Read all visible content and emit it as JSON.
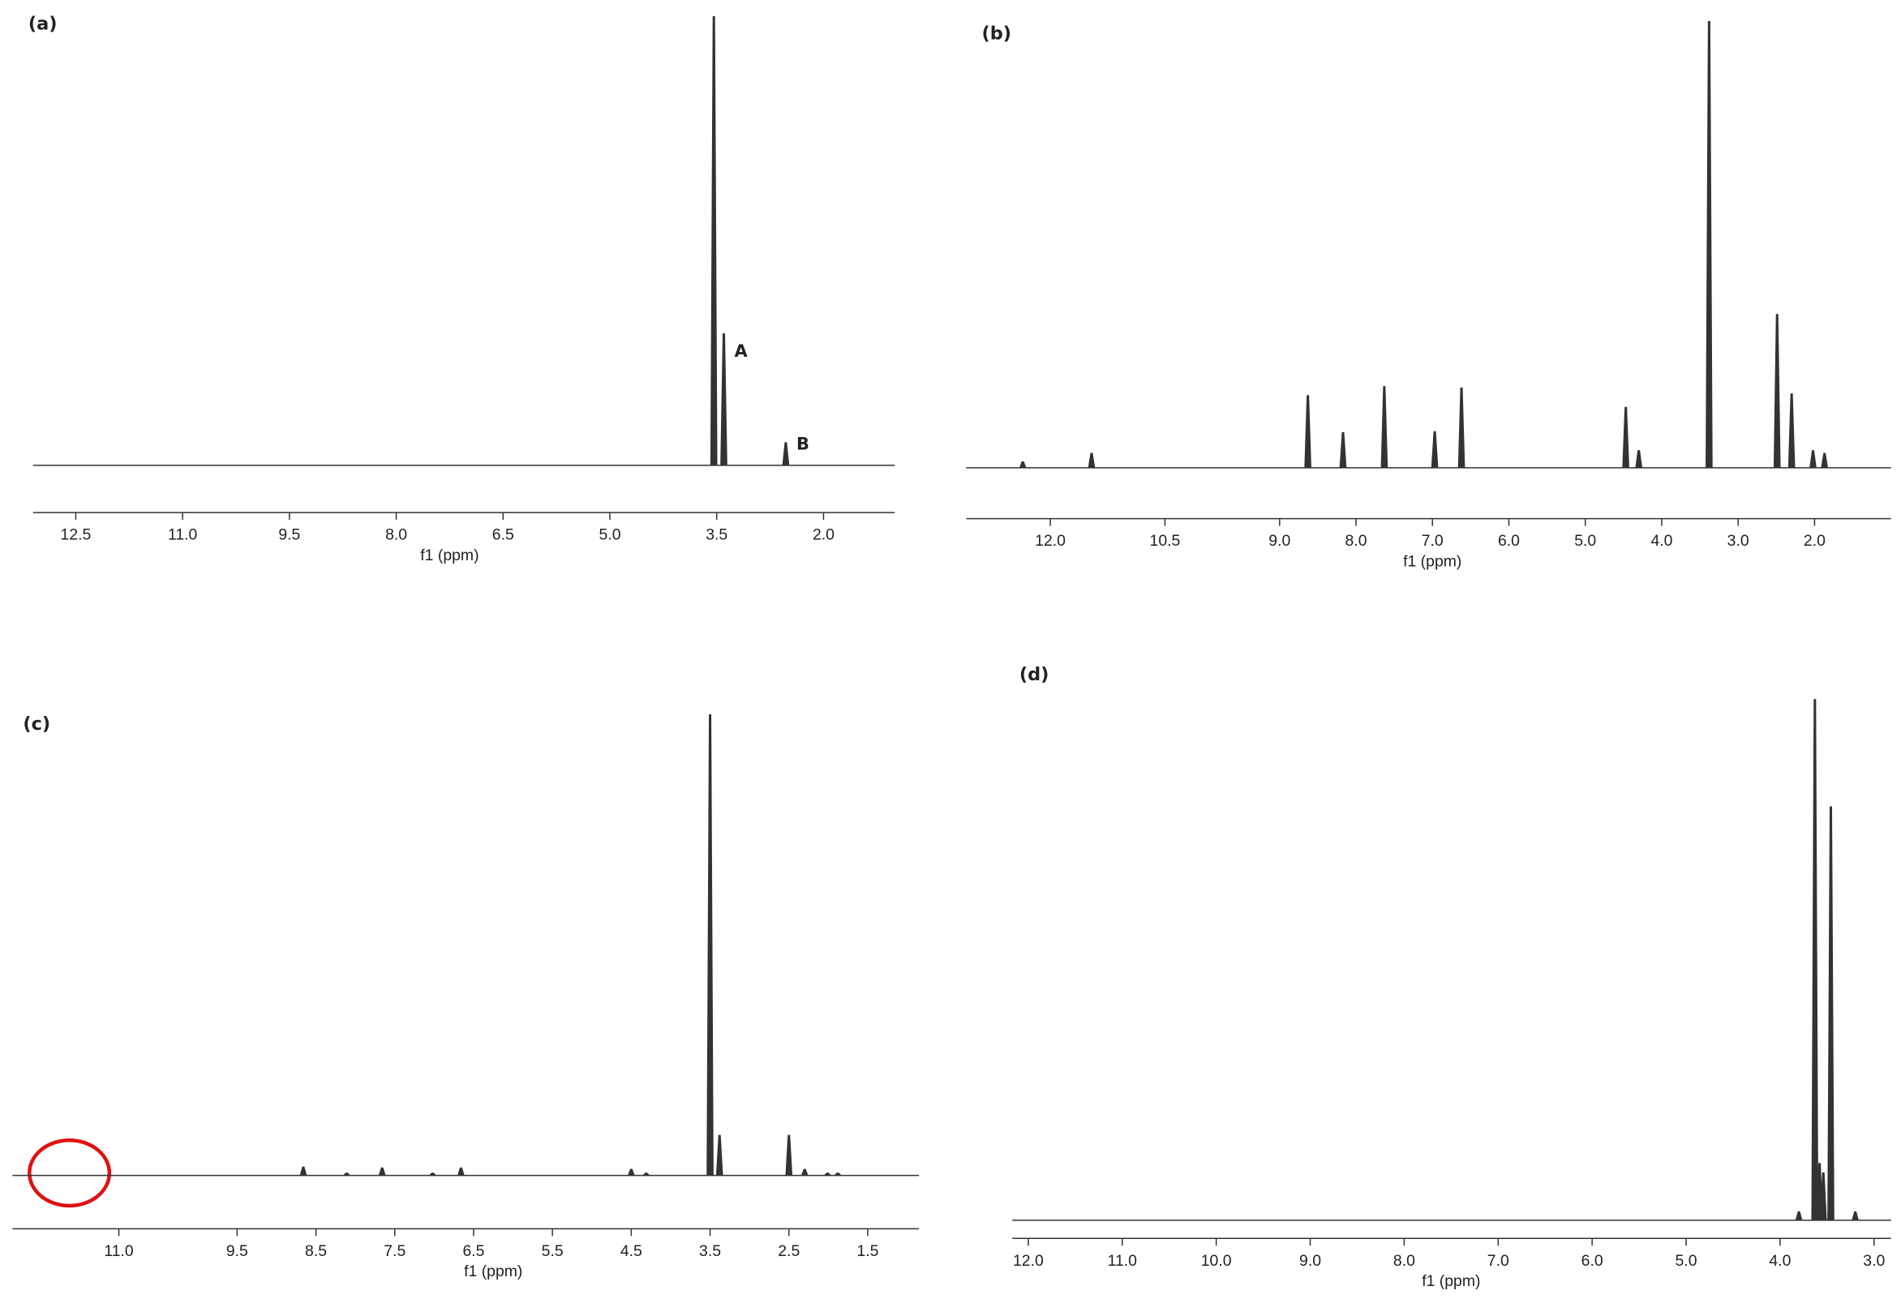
{
  "chart_data": [
    {
      "type": "spectrum",
      "title": "(a)",
      "x_label": "f1 (ppm)",
      "color": "#333333",
      "xlim": [
        13.1,
        1.0
      ],
      "ylim": [
        0,
        100
      ],
      "xticks": [
        12.5,
        {
          "value": 11,
          "label": "11.0"
        },
        9.5,
        {
          "value": 8,
          "label": "8.0"
        },
        6.5,
        {
          "value": 5,
          "label": "5.0"
        },
        3.5,
        {
          "value": 2,
          "label": "2.0"
        }
      ],
      "x": [
        3.54,
        3.4,
        2.53
      ],
      "values": [
        99,
        29,
        5
      ],
      "annotations": [
        {
          "text": "A",
          "x": 3.16,
          "y": 25
        },
        {
          "text": "B",
          "x": 2.29,
          "y": 4.5
        }
      ]
    },
    {
      "type": "spectrum",
      "title": "(b)",
      "x_label": "f1 (ppm)",
      "color": "#333333",
      "xlim": [
        13.1,
        1.0
      ],
      "ylim": [
        0,
        100
      ],
      "xticks": [
        {
          "value": 12,
          "label": "12.0"
        },
        10.5,
        {
          "value": 9,
          "label": "9.0"
        },
        {
          "value": 8,
          "label": "8.0"
        },
        {
          "value": 7,
          "label": "7.0"
        },
        {
          "value": 6,
          "label": "6.0"
        },
        {
          "value": 5,
          "label": "5.0"
        },
        {
          "value": 4,
          "label": "4.0"
        },
        {
          "value": 3,
          "label": "3.0"
        },
        {
          "value": 2,
          "label": "2.0"
        }
      ],
      "x": [
        12.36,
        11.46,
        8.63,
        8.17,
        7.63,
        6.97,
        6.62,
        4.47,
        4.3,
        3.38,
        2.49,
        2.3,
        2.02,
        1.87
      ],
      "values": [
        1.3,
        3.2,
        16,
        7.8,
        18,
        8,
        17.7,
        13.4,
        3.8,
        99,
        34,
        16.4,
        3.8,
        3.2
      ]
    },
    {
      "type": "spectrum",
      "title": "(c)",
      "x_label": "f1 (ppm)",
      "color": "#333333",
      "xlim": [
        12.35,
        0.85
      ],
      "ylim": [
        0,
        100
      ],
      "xticks": [
        {
          "value": 11,
          "label": "11.0"
        },
        9.5,
        8.5,
        7.5,
        6.5,
        5.5,
        4.5,
        3.5,
        2.5,
        1.5
      ],
      "x": [
        8.66,
        8.11,
        7.66,
        7.02,
        6.66,
        4.5,
        4.31,
        3.5,
        3.38,
        2.5,
        2.3,
        2.01,
        1.88
      ],
      "values": [
        1.8,
        0.5,
        1.6,
        0.5,
        1.6,
        1.3,
        0.5,
        99,
        8.6,
        8.6,
        1.3,
        0.5,
        0.5
      ]
    },
    {
      "type": "spectrum",
      "title": "(d)",
      "x_label": "f1 (ppm)",
      "color": "#333333",
      "xlim": [
        12.17,
        2.82
      ],
      "ylim": [
        0,
        100
      ],
      "xticks": [
        {
          "value": 12,
          "label": "12.0"
        },
        {
          "value": 11,
          "label": "11.0"
        },
        {
          "value": 10,
          "label": "10.0"
        },
        {
          "value": 9,
          "label": "9.0"
        },
        {
          "value": 8,
          "label": "8.0"
        },
        {
          "value": 7,
          "label": "7.0"
        },
        {
          "value": 6,
          "label": "6.0"
        },
        {
          "value": 5,
          "label": "5.0"
        },
        {
          "value": 4,
          "label": "4.0"
        },
        {
          "value": 3,
          "label": "3.0"
        }
      ],
      "x": [
        3.8,
        3.63,
        3.58,
        3.54,
        3.46,
        3.2
      ],
      "values": [
        1.6,
        99,
        10.8,
        9,
        78.6,
        1.6
      ]
    }
  ]
}
